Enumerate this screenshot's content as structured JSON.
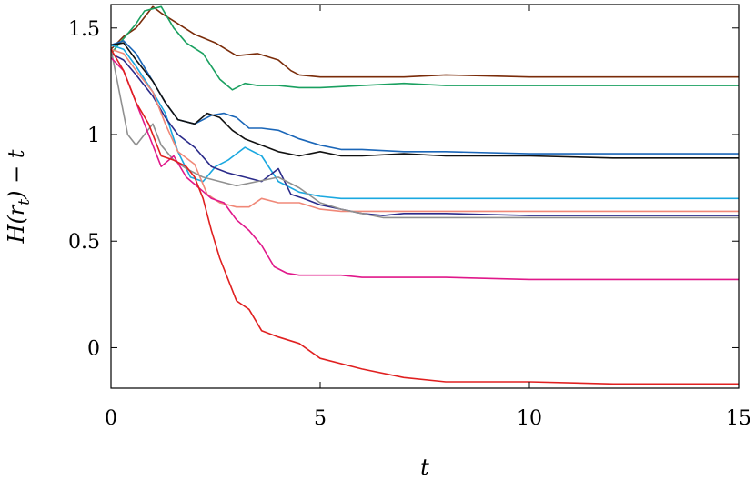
{
  "chart_data": {
    "type": "line",
    "xlabel": "t",
    "ylabel": "H(r_t) − t",
    "xlim": [
      0,
      15
    ],
    "ylim": [
      -0.19,
      1.61
    ],
    "xticks": [
      0,
      5,
      10,
      15
    ],
    "xtick_labels": [
      "0",
      "5",
      "10",
      "15"
    ],
    "yticks": [
      0,
      0.5,
      1,
      1.5
    ],
    "ytick_labels": [
      "0",
      "0.5",
      "1",
      "1.5"
    ],
    "grid": false,
    "legend": "none",
    "series": [
      {
        "color": "#7a2c0a",
        "x": [
          0,
          0.3,
          0.6,
          1,
          1.2,
          1.6,
          2,
          2.5,
          3,
          3.5,
          4,
          4.3,
          4.5,
          5,
          5.5,
          6,
          7,
          8,
          10,
          12,
          15
        ],
        "y": [
          1.4,
          1.46,
          1.5,
          1.6,
          1.57,
          1.52,
          1.47,
          1.43,
          1.37,
          1.38,
          1.35,
          1.3,
          1.28,
          1.27,
          1.27,
          1.27,
          1.27,
          1.28,
          1.27,
          1.27,
          1.27
        ]
      },
      {
        "color": "#1aa060",
        "x": [
          0,
          0.3,
          0.6,
          0.8,
          1.2,
          1.5,
          1.8,
          2.2,
          2.6,
          2.9,
          3.2,
          3.5,
          4,
          4.5,
          5,
          6,
          7,
          8,
          10,
          12,
          15
        ],
        "y": [
          1.38,
          1.45,
          1.52,
          1.58,
          1.6,
          1.5,
          1.43,
          1.38,
          1.26,
          1.21,
          1.24,
          1.23,
          1.23,
          1.22,
          1.22,
          1.23,
          1.24,
          1.23,
          1.23,
          1.23,
          1.23
        ]
      },
      {
        "color": "#1a66b8",
        "x": [
          0,
          0.3,
          0.6,
          1,
          1.3,
          1.6,
          2,
          2.4,
          2.7,
          3,
          3.3,
          3.6,
          4,
          4.5,
          5,
          5.5,
          6,
          7,
          8,
          10,
          12,
          15
        ],
        "y": [
          1.42,
          1.44,
          1.38,
          1.25,
          1.15,
          1.07,
          1.05,
          1.09,
          1.1,
          1.08,
          1.03,
          1.03,
          1.02,
          0.98,
          0.95,
          0.93,
          0.93,
          0.92,
          0.92,
          0.91,
          0.91,
          0.91
        ]
      },
      {
        "color": "#111111",
        "x": [
          0,
          0.3,
          0.6,
          1,
          1.3,
          1.6,
          2,
          2.3,
          2.6,
          2.9,
          3.2,
          3.6,
          4,
          4.5,
          5,
          5.5,
          6,
          7,
          8,
          10,
          12,
          15
        ],
        "y": [
          1.42,
          1.43,
          1.35,
          1.25,
          1.15,
          1.07,
          1.05,
          1.1,
          1.08,
          1.02,
          0.98,
          0.95,
          0.92,
          0.9,
          0.92,
          0.9,
          0.9,
          0.91,
          0.9,
          0.9,
          0.89,
          0.89
        ]
      },
      {
        "color": "#1aa8e0",
        "x": [
          0,
          0.3,
          0.6,
          1,
          1.3,
          1.6,
          1.9,
          2.2,
          2.5,
          2.8,
          3.2,
          3.6,
          4,
          4.5,
          5,
          5.5,
          6,
          7,
          8,
          10,
          12,
          15
        ],
        "y": [
          1.42,
          1.4,
          1.32,
          1.2,
          1.1,
          0.92,
          0.8,
          0.78,
          0.85,
          0.88,
          0.94,
          0.9,
          0.78,
          0.73,
          0.71,
          0.7,
          0.7,
          0.7,
          0.7,
          0.7,
          0.7,
          0.7
        ]
      },
      {
        "color": "#2b2b8a",
        "x": [
          0,
          0.3,
          0.6,
          1,
          1.3,
          1.6,
          2,
          2.4,
          2.8,
          3.2,
          3.6,
          4,
          4.3,
          4.6,
          5,
          5.5,
          6,
          6.5,
          7,
          8,
          10,
          12,
          15
        ],
        "y": [
          1.38,
          1.35,
          1.28,
          1.18,
          1.08,
          1.0,
          0.94,
          0.85,
          0.82,
          0.8,
          0.78,
          0.84,
          0.72,
          0.7,
          0.67,
          0.65,
          0.63,
          0.62,
          0.63,
          0.63,
          0.62,
          0.62,
          0.62
        ]
      },
      {
        "color": "#f08878",
        "x": [
          0,
          0.3,
          0.6,
          1,
          1.3,
          1.6,
          2,
          2.3,
          2.6,
          3,
          3.3,
          3.6,
          4,
          4.5,
          5,
          5.5,
          6,
          7,
          8,
          10,
          12,
          15
        ],
        "y": [
          1.4,
          1.38,
          1.3,
          1.2,
          1.05,
          0.92,
          0.86,
          0.72,
          0.68,
          0.66,
          0.66,
          0.7,
          0.68,
          0.68,
          0.65,
          0.64,
          0.64,
          0.64,
          0.64,
          0.64,
          0.64,
          0.64
        ]
      },
      {
        "color": "#909090",
        "x": [
          0,
          0.2,
          0.4,
          0.6,
          0.8,
          1,
          1.2,
          1.5,
          1.8,
          2.2,
          2.6,
          3,
          3.5,
          4,
          4.5,
          5,
          5.5,
          6,
          6.5,
          7,
          8,
          10,
          12,
          15
        ],
        "y": [
          1.4,
          1.2,
          1.0,
          0.95,
          1.0,
          1.05,
          0.95,
          0.88,
          0.84,
          0.8,
          0.78,
          0.76,
          0.78,
          0.8,
          0.75,
          0.68,
          0.65,
          0.63,
          0.61,
          0.61,
          0.61,
          0.61,
          0.61,
          0.61
        ]
      },
      {
        "color": "#e0188a",
        "x": [
          0,
          0.3,
          0.6,
          0.9,
          1.2,
          1.5,
          1.8,
          2.1,
          2.4,
          2.7,
          3,
          3.3,
          3.6,
          3.9,
          4.2,
          4.5,
          5,
          5.5,
          6,
          7,
          8,
          10,
          12,
          15
        ],
        "y": [
          1.36,
          1.3,
          1.15,
          1.0,
          0.85,
          0.9,
          0.8,
          0.75,
          0.7,
          0.68,
          0.6,
          0.55,
          0.48,
          0.38,
          0.35,
          0.34,
          0.34,
          0.34,
          0.33,
          0.33,
          0.33,
          0.32,
          0.32,
          0.32
        ]
      },
      {
        "color": "#e02020",
        "x": [
          0,
          0.3,
          0.6,
          0.9,
          1.2,
          1.5,
          1.8,
          2.0,
          2.2,
          2.4,
          2.6,
          2.8,
          3.0,
          3.3,
          3.6,
          4,
          4.5,
          5,
          6,
          7,
          8,
          10,
          12,
          15
        ],
        "y": [
          1.4,
          1.3,
          1.15,
          1.05,
          0.9,
          0.88,
          0.85,
          0.8,
          0.7,
          0.55,
          0.42,
          0.32,
          0.22,
          0.18,
          0.08,
          0.05,
          0.02,
          -0.05,
          -0.1,
          -0.14,
          -0.16,
          -0.16,
          -0.17,
          -0.17
        ]
      }
    ]
  }
}
